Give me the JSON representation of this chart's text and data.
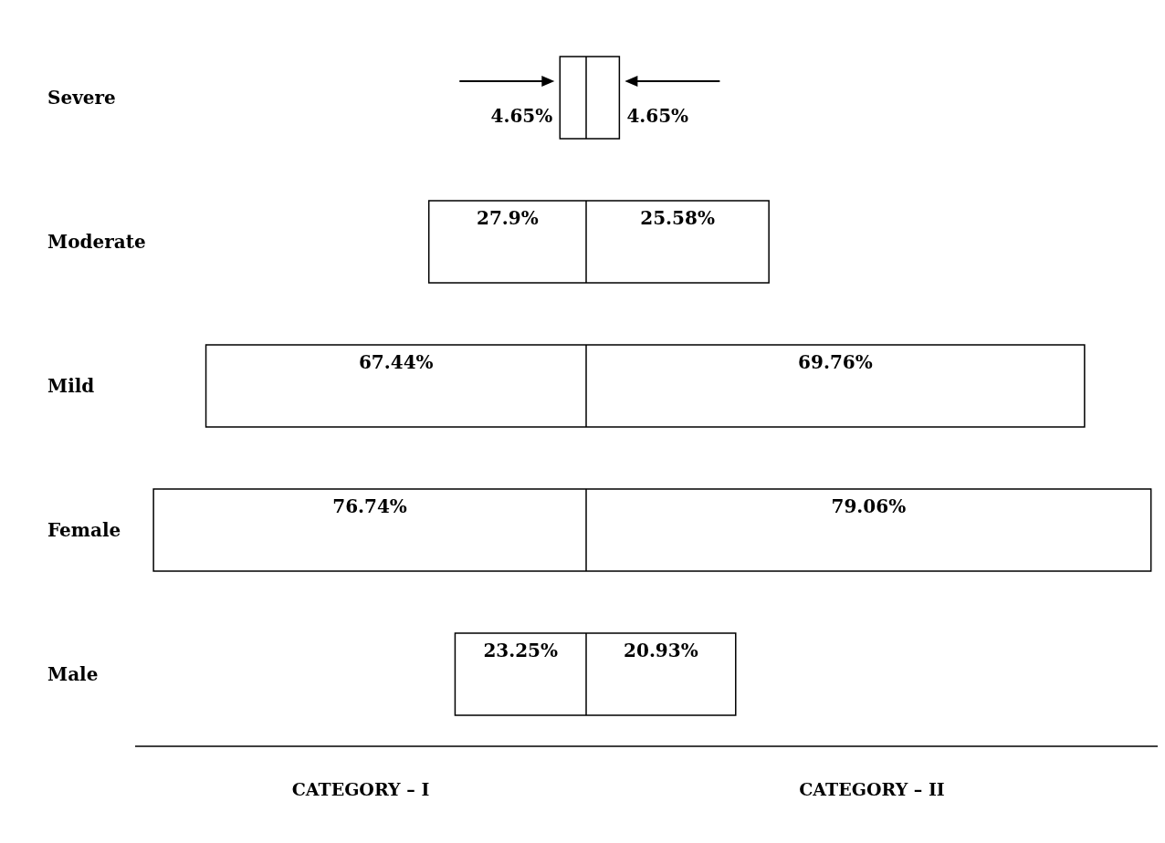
{
  "chart_data": [
    {
      "type": "bar",
      "orientation": "horizontal",
      "categories": [
        "Severe",
        "Moderate",
        "Mild",
        "Female",
        "Male"
      ],
      "xlim": [
        80,
        0
      ],
      "xlabel": "CATEGORY – I",
      "tick_labels": "y",
      "series": [
        {
          "color": "#ffffff",
          "values": [
            4.65,
            27.9,
            67.44,
            76.74,
            23.25
          ],
          "value_labels": [
            "4.65%",
            "27.9%",
            "67.44%",
            "76.74%",
            "23.25%"
          ]
        }
      ]
    },
    {
      "type": "bar",
      "orientation": "horizontal",
      "categories": [
        null,
        null,
        null,
        null,
        null
      ],
      "xlim": [
        0,
        80
      ],
      "xlabel": "CATEGORY – II",
      "tick_labels": false,
      "series": [
        {
          "color": "#ffffff",
          "values": [
            4.65,
            25.58,
            69.76,
            79.06,
            20.93
          ],
          "value_labels": [
            "4.65%",
            "25.58%",
            "69.76%",
            "79.06%",
            "20.93%"
          ]
        }
      ]
    }
  ]
}
